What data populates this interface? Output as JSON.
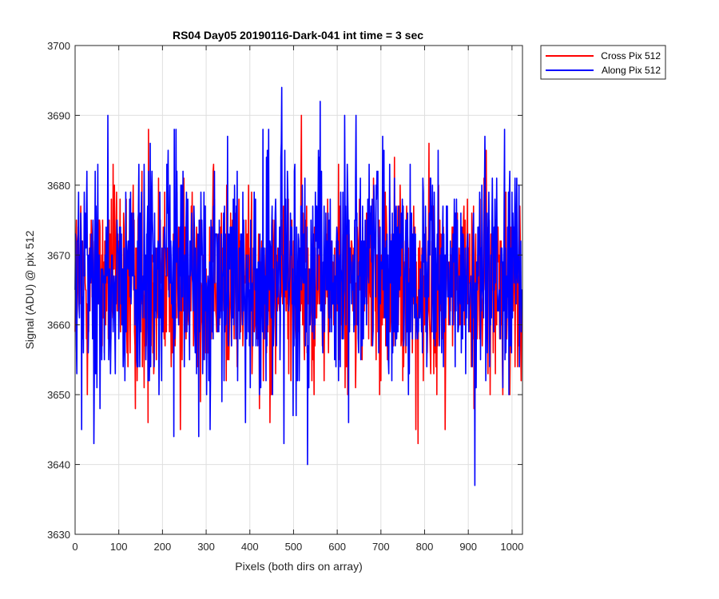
{
  "chart_data": {
    "type": "line",
    "title": "RS04 Day05 20190116-Dark-041 int time = 3 sec",
    "xlabel": "Pixels (both dirs on array)",
    "ylabel": "Signal (ADU) @ pix 512",
    "xlim": [
      0,
      1024
    ],
    "ylim": [
      3630,
      3700
    ],
    "xticks": [
      0,
      100,
      200,
      300,
      400,
      500,
      600,
      700,
      800,
      900,
      1000
    ],
    "yticks": [
      3630,
      3640,
      3650,
      3660,
      3670,
      3680,
      3690,
      3700
    ],
    "grid": true,
    "legend_position": "outside-top-right",
    "series": [
      {
        "name": "Cross Pix 512",
        "color": "#ff0000",
        "x_range": [
          0,
          1023
        ],
        "n_points": 1024,
        "mean": 3666,
        "min": 3643,
        "max": 3690,
        "peaks": [
          {
            "x": 168,
            "y": 3688
          },
          {
            "x": 518,
            "y": 3690
          },
          {
            "x": 241,
            "y": 3645
          },
          {
            "x": 785,
            "y": 3643
          },
          {
            "x": 780,
            "y": 3645
          },
          {
            "x": 167,
            "y": 3646
          },
          {
            "x": 624,
            "y": 3650
          }
        ]
      },
      {
        "name": "Along Pix 512",
        "color": "#0000ff",
        "x_range": [
          0,
          1023
        ],
        "n_points": 1024,
        "mean": 3667,
        "min": 3637,
        "max": 3694,
        "peaks": [
          {
            "x": 473,
            "y": 3694
          },
          {
            "x": 75,
            "y": 3690
          },
          {
            "x": 617,
            "y": 3690
          },
          {
            "x": 915,
            "y": 3637
          },
          {
            "x": 478,
            "y": 3643
          },
          {
            "x": 57,
            "y": 3648
          },
          {
            "x": 983,
            "y": 3688
          }
        ]
      }
    ]
  }
}
